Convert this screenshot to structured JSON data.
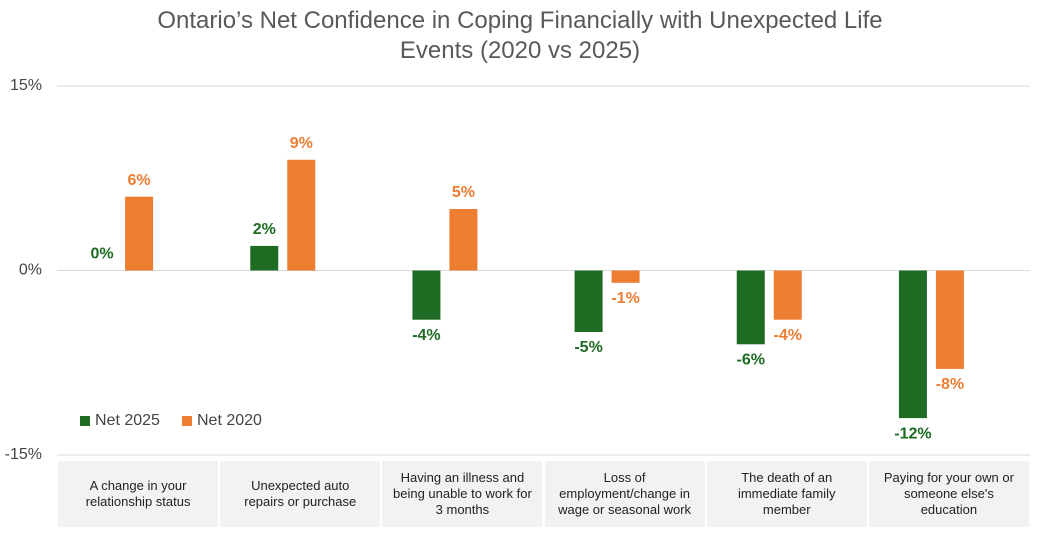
{
  "chart_data": {
    "type": "bar",
    "title": "Ontario’s Net Confidence in Coping Financially with Unexpected Life Events (2020 vs 2025)",
    "categories": [
      "A change in your relationship status",
      "Unexpected auto repairs or purchase",
      "Having an illness and being unable to work for 3 months",
      "Loss of employment/change in wage or seasonal work",
      "The death of an immediate family member",
      "Paying for your own or someone else's education"
    ],
    "series": [
      {
        "name": "Net 2025",
        "color": "#1e6b23",
        "values": [
          0,
          2,
          -4,
          -5,
          -6,
          -12
        ],
        "value_labels": [
          "0%",
          "2%",
          "-4%",
          "-5%",
          "-6%",
          "-12%"
        ]
      },
      {
        "name": "Net 2020",
        "color": "#ed7d31",
        "values": [
          6,
          9,
          5,
          -1,
          -4,
          -8
        ],
        "value_labels": [
          "6%",
          "9%",
          "5%",
          "-1%",
          "-4%",
          "-8%"
        ]
      }
    ],
    "ylim": [
      -15,
      15
    ],
    "yticks": [
      {
        "value": 15,
        "label": "15%"
      },
      {
        "value": 0,
        "label": "0%"
      },
      {
        "value": -15,
        "label": "-15%"
      }
    ],
    "grid": true,
    "legend": "bottom-left"
  }
}
